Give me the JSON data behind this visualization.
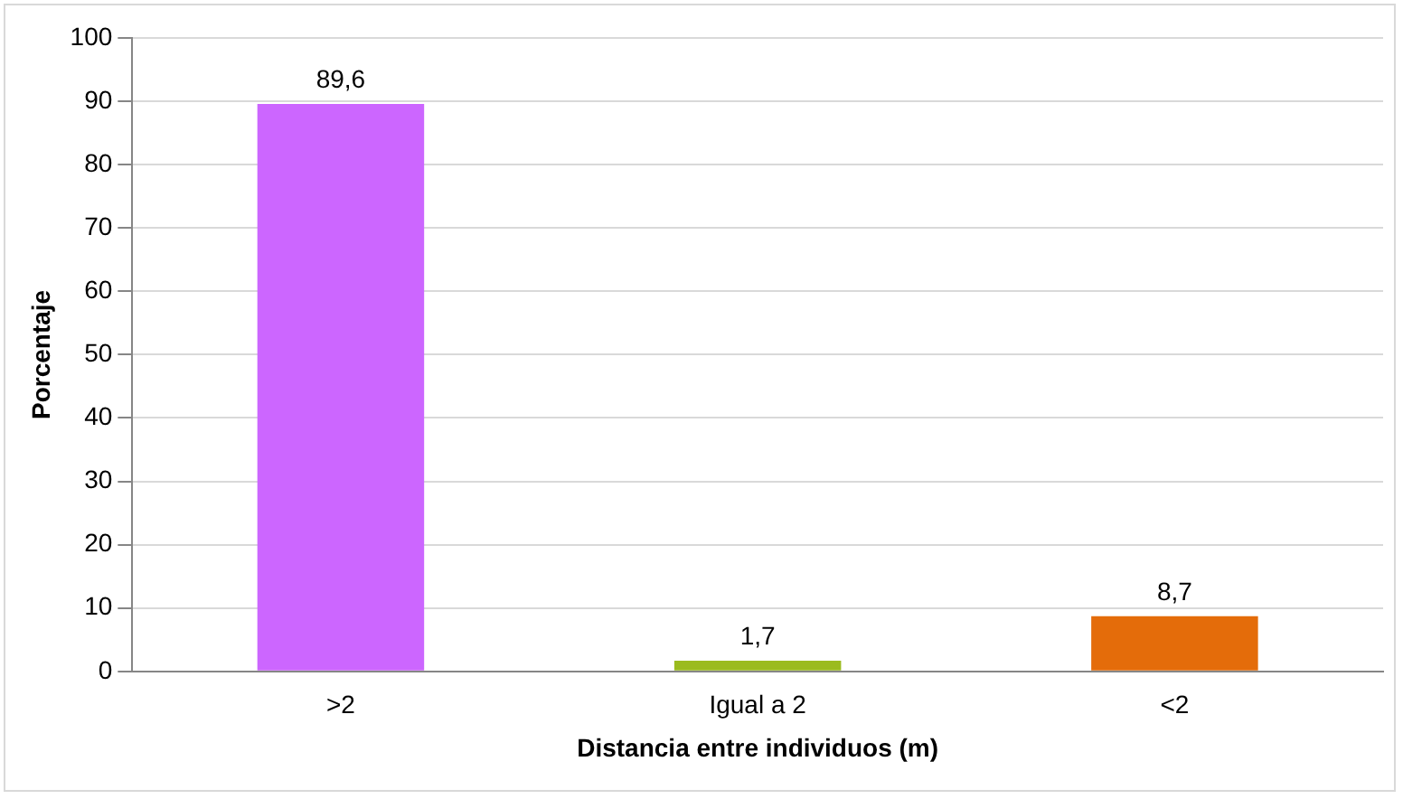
{
  "chart_data": {
    "type": "bar",
    "xlabel": "Distancia entre individuos (m)",
    "ylabel": "Porcentaje",
    "categories": [
      ">2",
      "Igual a 2",
      "<2"
    ],
    "values": [
      89.6,
      1.7,
      8.7
    ],
    "colors": [
      "#cc66ff",
      "#9bbb1f",
      "#e46c0a"
    ],
    "value_labels": [
      "89,6",
      "1,7",
      "8,7"
    ],
    "ylim": [
      0,
      100
    ],
    "yticks": [
      0,
      10,
      20,
      30,
      40,
      50,
      60,
      70,
      80,
      90,
      100
    ],
    "grid": "y",
    "legend": false
  }
}
